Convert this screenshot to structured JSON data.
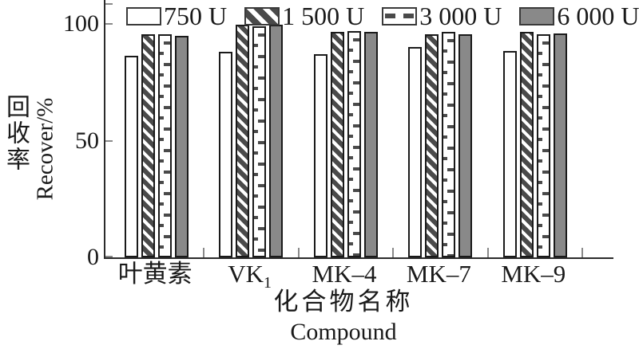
{
  "chart_data": {
    "type": "bar",
    "title": "",
    "categories": [
      {
        "label": "叶黄素"
      },
      {
        "label": "VK",
        "sub": "1"
      },
      {
        "label": "MK–4"
      },
      {
        "label": "MK–7"
      },
      {
        "label": "MK–9"
      }
    ],
    "series": [
      {
        "name": "750 U",
        "pattern": "white",
        "values": [
          86.5,
          88,
          87,
          90,
          88.5
        ]
      },
      {
        "name": "1 500 U",
        "pattern": "diagonal-hatch",
        "values": [
          95.5,
          99.5,
          96.5,
          95.5,
          96.5
        ]
      },
      {
        "name": "3 000 U",
        "pattern": "horizontal-dash",
        "values": [
          95.5,
          99,
          97,
          96.5,
          95.5
        ]
      },
      {
        "name": "6 000 U",
        "pattern": "solid-gray",
        "values": [
          95,
          99.5,
          96.5,
          95.5,
          96
        ]
      }
    ],
    "ylabel_cn": "回收率",
    "ylabel_en": "Recover/%",
    "xlabel_cn": "化合物名称",
    "xlabel_en": "Compound",
    "yticks": [
      0,
      50,
      100
    ],
    "ylim": [
      0,
      110
    ],
    "grid": false,
    "legend_position": "top",
    "colors": {
      "bar_gray_fill": "#898989",
      "pattern_dark": "#4a4a4a",
      "bar_stroke": "#1a1a1a",
      "axis": "#2b2b2b",
      "tick": "#8a8a8a",
      "background": "#ffffff"
    }
  }
}
